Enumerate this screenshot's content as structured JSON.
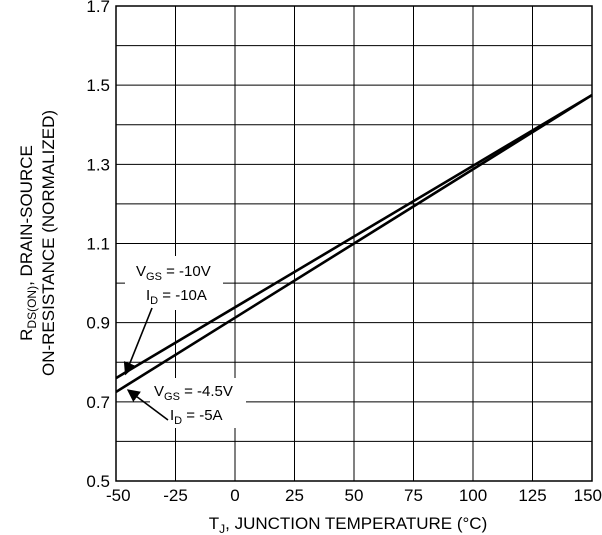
{
  "chart_data": {
    "type": "line",
    "xlabel": {
      "main": "T",
      "sub": "J",
      "rest": ", JUNCTION TEMPERATURE (°C)"
    },
    "ylabel": {
      "line1_main": "R",
      "line1_sub": "DS(ON)",
      "line1_rest": ", DRAIN-SOURCE",
      "line2": "ON-RESISTANCE (NORMALIZED)"
    },
    "xlim": [
      -50,
      150
    ],
    "ylim": [
      0.5,
      1.7
    ],
    "x_ticks": [
      "-50",
      "-25",
      "0",
      "25",
      "50",
      "75",
      "100",
      "125",
      "150"
    ],
    "y_ticks": [
      "0.5",
      "0.7",
      "0.9",
      "1.1",
      "1.3",
      "1.5",
      "1.7"
    ],
    "grid": true,
    "series": [
      {
        "x": [
          -50,
          150
        ],
        "y": [
          0.76,
          1.475
        ]
      },
      {
        "x": [
          -50,
          150
        ],
        "y": [
          0.725,
          1.475
        ]
      }
    ],
    "annotations": [
      {
        "line1": {
          "main": "V",
          "sub": "GS",
          "rest": " = -10V"
        },
        "line2": {
          "main": "I",
          "sub": "D",
          "rest": " = -10A"
        },
        "target": [
          -46,
          0.77
        ]
      },
      {
        "line1": {
          "main": "V",
          "sub": "GS",
          "rest": " = -4.5V"
        },
        "line2": {
          "main": "I",
          "sub": "D",
          "rest": " = -5A"
        },
        "target": [
          -45,
          0.73
        ]
      }
    ]
  }
}
